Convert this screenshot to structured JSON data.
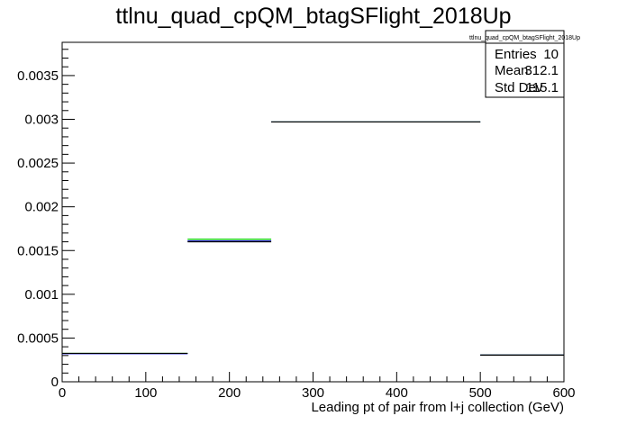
{
  "chart_data": {
    "type": "histogram",
    "title": "ttlnu_quad_cpQM_btagSFlight_2018Up",
    "xlabel": "Leading pt of pair from l+j collection (GeV)",
    "ylabel": "",
    "xlim": [
      0,
      600
    ],
    "ylim": [
      0,
      0.00388
    ],
    "x_ticks": [
      0,
      100,
      200,
      300,
      400,
      500,
      600
    ],
    "y_ticks": [
      0,
      0.0005,
      0.001,
      0.0015,
      0.002,
      0.0025,
      0.003,
      0.0035
    ],
    "x_tick_labels": [
      "0",
      "100",
      "200",
      "300",
      "400",
      "500",
      "600"
    ],
    "y_tick_labels": [
      "0",
      "0.0005",
      "0.001",
      "0.0015",
      "0.002",
      "0.0025",
      "0.003",
      "0.0035"
    ],
    "bin_edges": [
      0,
      150,
      250,
      500,
      600
    ],
    "series": [
      {
        "color": "#00cc00",
        "values": [
          0.000325,
          0.00163,
          0.00297,
          0.000305
        ]
      },
      {
        "color": "#0000cc",
        "values": [
          0.000322,
          0.00161,
          0.00297,
          0.000305
        ]
      },
      {
        "color": "#000000",
        "values": [
          0.000325,
          0.0016,
          0.00297,
          0.000305
        ]
      }
    ],
    "stats_box": {
      "title": "ttlnu_quad_cpQM_btagSFlight_2018Up",
      "rows": [
        {
          "label": "Entries",
          "value": "10"
        },
        {
          "label": "Mean",
          "value": "312.1"
        },
        {
          "label": "Std Dev",
          "value": "115.1"
        }
      ]
    },
    "grid": false,
    "legend": "none"
  }
}
